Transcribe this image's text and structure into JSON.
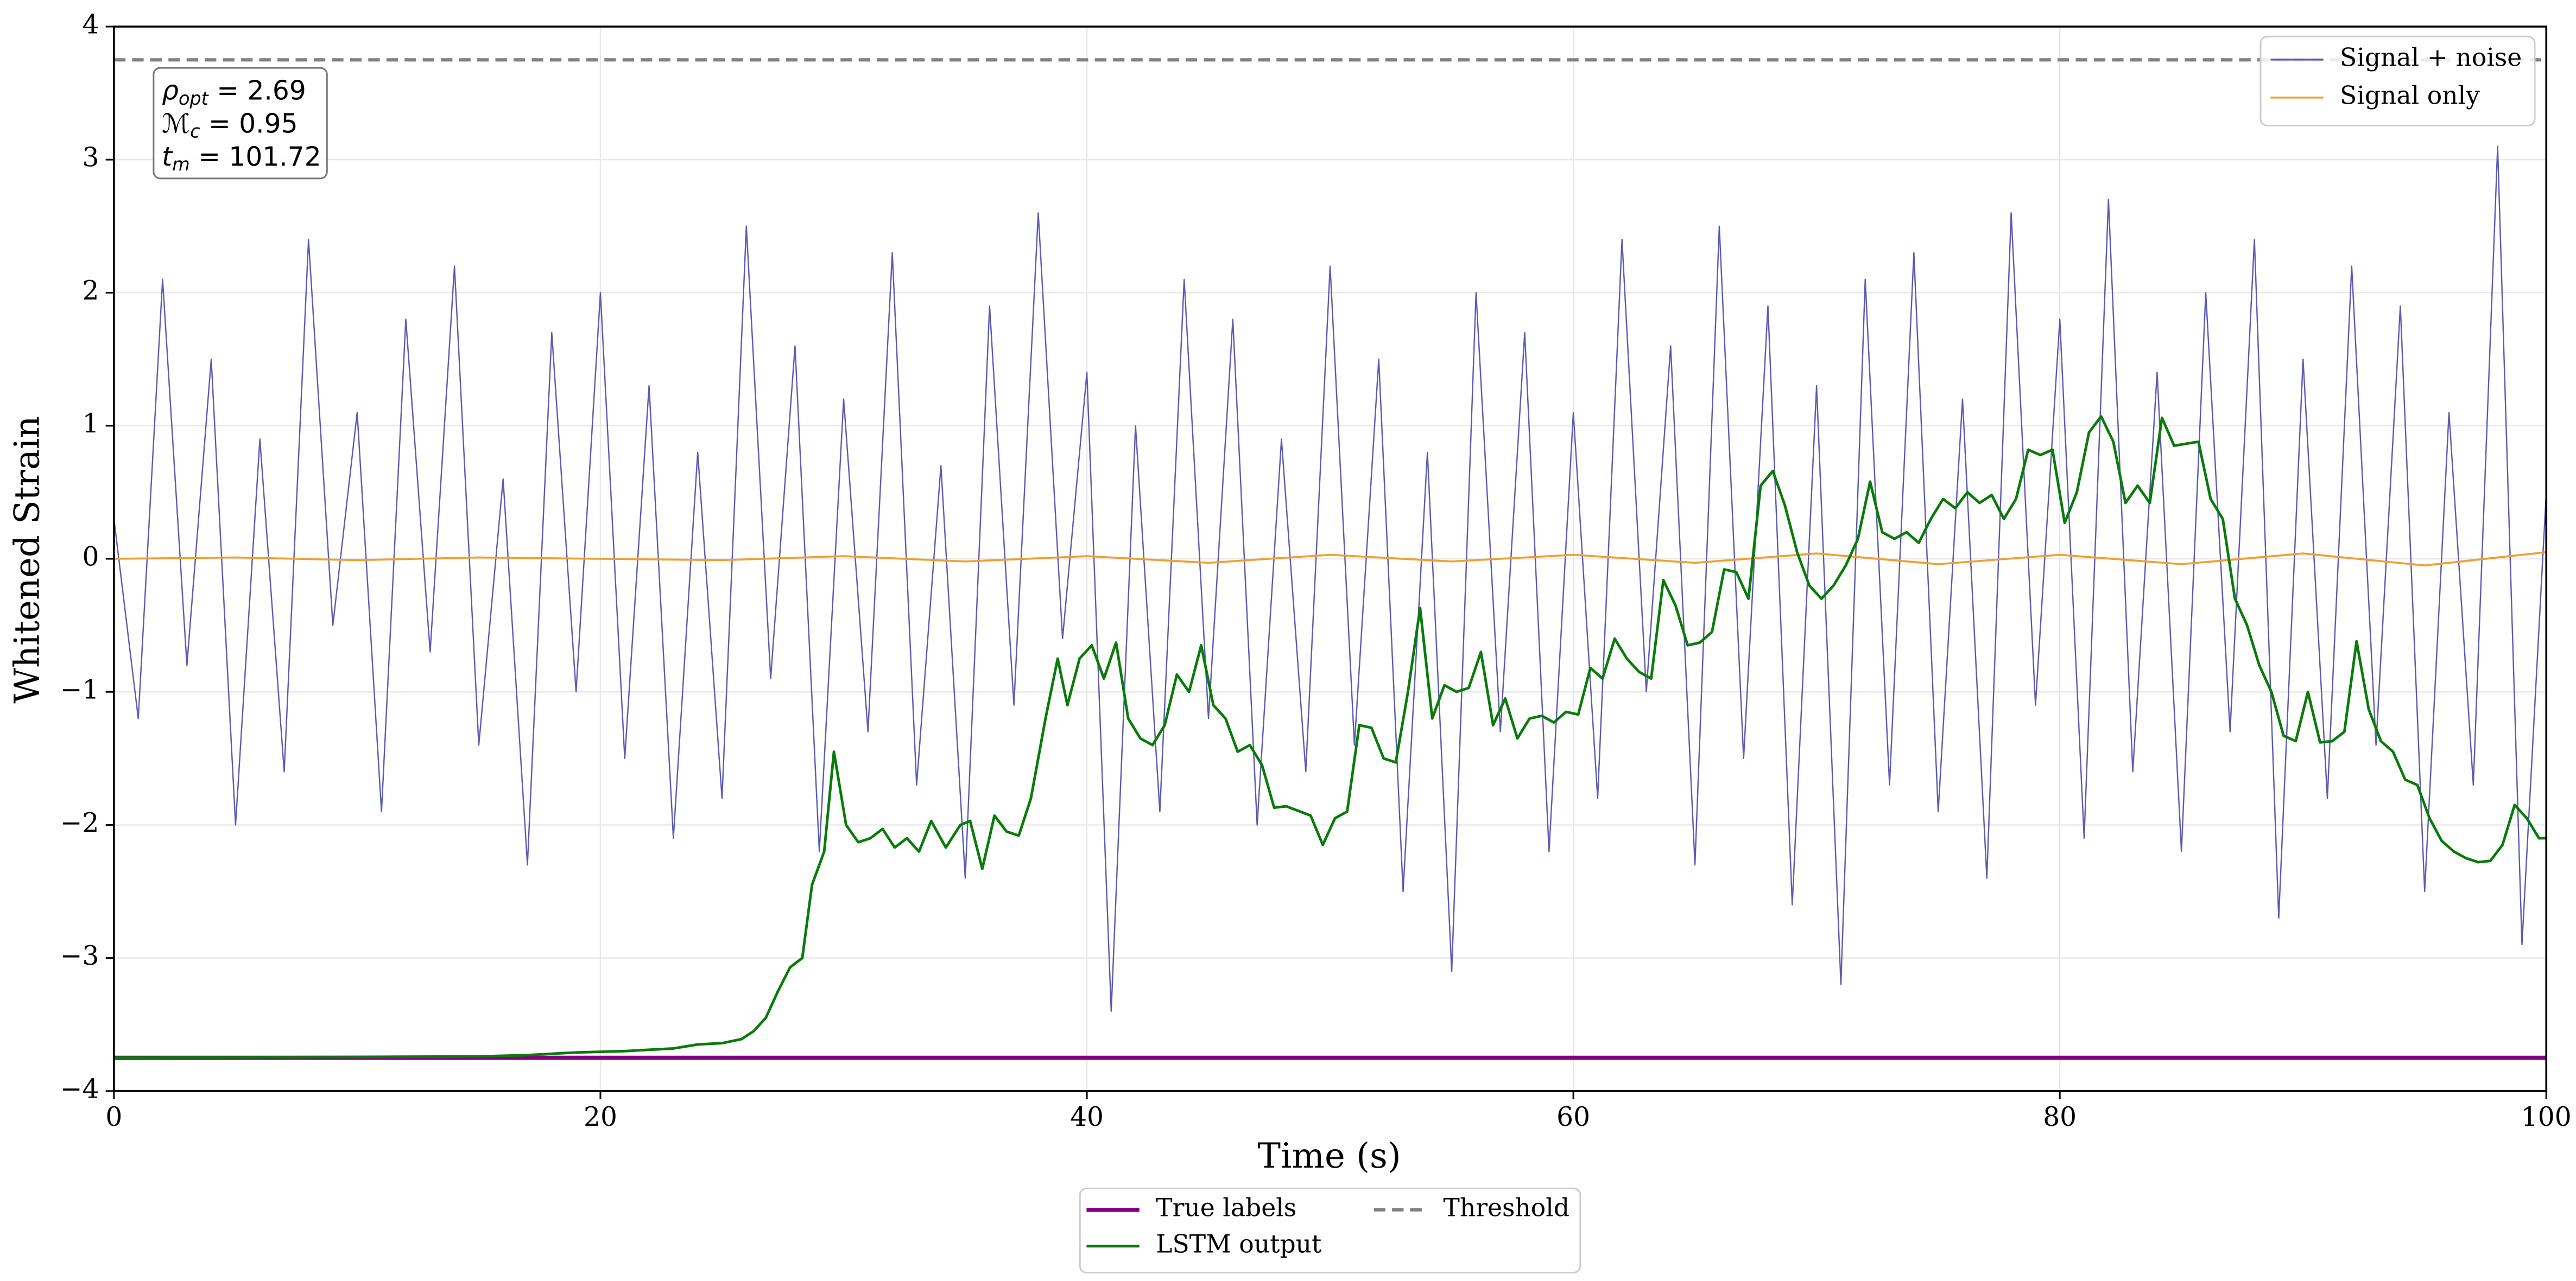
{
  "chart_data": {
    "type": "line",
    "xlabel": "Time (s)",
    "ylabel": "Whitened Strain",
    "xlim": [
      0,
      100
    ],
    "ylim": [
      -4,
      4
    ],
    "xticks": [
      0,
      20,
      40,
      60,
      80,
      100
    ],
    "yticks": [
      {
        "value": -4,
        "label": "−4"
      },
      {
        "value": -3,
        "label": "−3"
      },
      {
        "value": -2,
        "label": "−2"
      },
      {
        "value": -1,
        "label": "−1"
      },
      0,
      1,
      2,
      3,
      4
    ],
    "grid": true,
    "annotations": [
      {
        "symbol": "ρ",
        "sub": "opt",
        "text": " = 2.69"
      },
      {
        "symbol": "ℳ",
        "sub": "c",
        "text": " = 0.95"
      },
      {
        "symbol": "t",
        "sub": "m",
        "text": " = 101.72"
      }
    ],
    "series": [
      {
        "name": "Signal + noise",
        "color": "#5b5bb5",
        "width": 0.8,
        "legend": "upper right",
        "x": [
          0,
          1,
          2,
          3,
          4,
          5,
          6,
          7,
          8,
          9,
          10,
          11,
          12,
          13,
          14,
          15,
          16,
          17,
          18,
          19,
          20,
          21,
          22,
          23,
          24,
          25,
          26,
          27,
          28,
          29,
          30,
          31,
          32,
          33,
          34,
          35,
          36,
          37,
          38,
          39,
          40,
          41,
          42,
          43,
          44,
          45,
          46,
          47,
          48,
          49,
          50,
          51,
          52,
          53,
          54,
          55,
          56,
          57,
          58,
          59,
          60,
          61,
          62,
          63,
          64,
          65,
          66,
          67,
          68,
          69,
          70,
          71,
          72,
          73,
          74,
          75,
          76,
          77,
          78,
          79,
          80,
          81,
          82,
          83,
          84,
          85,
          86,
          87,
          88,
          89,
          90,
          91,
          92,
          93,
          94,
          95,
          96,
          97,
          98,
          99,
          100
        ],
        "values": [
          0.3,
          -1.2,
          2.1,
          -0.8,
          1.5,
          -2.0,
          0.9,
          -1.6,
          2.4,
          -0.5,
          1.1,
          -1.9,
          1.8,
          -0.7,
          2.2,
          -1.4,
          0.6,
          -2.3,
          1.7,
          -1.0,
          2.0,
          -1.5,
          1.3,
          -2.1,
          0.8,
          -1.8,
          2.5,
          -0.9,
          1.6,
          -2.2,
          1.2,
          -1.3,
          2.3,
          -1.7,
          0.7,
          -2.4,
          1.9,
          -1.1,
          2.6,
          -0.6,
          1.4,
          -3.4,
          1.0,
          -1.9,
          2.1,
          -1.2,
          1.8,
          -2.0,
          0.9,
          -1.6,
          2.2,
          -1.4,
          1.5,
          -2.5,
          0.8,
          -3.1,
          2.0,
          -1.3,
          1.7,
          -2.2,
          1.1,
          -1.8,
          2.4,
          -1.0,
          1.6,
          -2.3,
          2.5,
          -1.5,
          1.9,
          -2.6,
          1.3,
          -3.2,
          2.1,
          -1.7,
          2.3,
          -1.9,
          1.2,
          -2.4,
          2.6,
          -1.1,
          1.8,
          -2.1,
          2.7,
          -1.6,
          1.4,
          -2.2,
          2.0,
          -1.3,
          2.4,
          -2.7,
          1.5,
          -1.8,
          2.2,
          -1.4,
          1.9,
          -2.5,
          1.1,
          -1.7,
          3.1,
          -2.9,
          0.5
        ]
      },
      {
        "name": "Signal only",
        "color": "#f0a030",
        "width": 1.2,
        "legend": "upper right",
        "x": [
          0,
          5,
          10,
          15,
          20,
          25,
          30,
          35,
          40,
          45,
          50,
          55,
          60,
          65,
          70,
          75,
          80,
          85,
          90,
          95,
          100
        ],
        "values": [
          0,
          0.01,
          -0.01,
          0.01,
          0,
          -0.01,
          0.02,
          -0.02,
          0.02,
          -0.03,
          0.03,
          -0.02,
          0.03,
          -0.03,
          0.04,
          -0.04,
          0.03,
          -0.04,
          0.04,
          -0.05,
          0.05
        ]
      },
      {
        "name": "True labels",
        "color": "#800080",
        "width": 2.5,
        "legend": "below",
        "x": [
          0,
          100
        ],
        "values": [
          -3.75,
          -3.75
        ]
      },
      {
        "name": "LSTM output",
        "color": "#0a7a0a",
        "width": 1.6,
        "legend": "below",
        "x": [
          0,
          15,
          17,
          19,
          21,
          22,
          23,
          24,
          25,
          25.8,
          26.3,
          26.8,
          27.3,
          27.8,
          28.3,
          28.7,
          29.2,
          29.6,
          30.1,
          30.6,
          31.1,
          31.6,
          32.1,
          32.6,
          33.1,
          33.6,
          34.2,
          34.8,
          35.2,
          35.7,
          36.2,
          36.7,
          37.2,
          37.7,
          38.3,
          38.8,
          39.2,
          39.7,
          40.2,
          40.7,
          41.2,
          41.7,
          42.2,
          42.7,
          43.2,
          43.7,
          44.2,
          44.7,
          45.2,
          45.7,
          46.2,
          46.7,
          47.2,
          47.7,
          48.2,
          49.2,
          49.7,
          50.2,
          50.7,
          51.2,
          51.7,
          52.2,
          52.7,
          53.2,
          53.7,
          54.2,
          54.7,
          55.2,
          55.7,
          56.2,
          56.7,
          57.2,
          57.7,
          58.2,
          58.7,
          59.2,
          59.7,
          60.2,
          60.7,
          61.2,
          61.7,
          62.2,
          62.7,
          63.2,
          63.7,
          64.2,
          64.7,
          65.2,
          65.7,
          66.2,
          66.7,
          67.2,
          67.7,
          68.2,
          68.7,
          69.2,
          69.7,
          70.2,
          70.7,
          71.2,
          71.7,
          72.2,
          72.7,
          73.2,
          73.7,
          74.2,
          74.7,
          75.2,
          75.7,
          76.2,
          76.7,
          77.2,
          77.7,
          78.2,
          78.7,
          79.2,
          79.7,
          80.2,
          80.7,
          81.2,
          81.7,
          82.2,
          82.7,
          83.2,
          83.7,
          84.2,
          84.7,
          85.7,
          86.2,
          86.7,
          87.2,
          87.7,
          88.2,
          88.7,
          89.2,
          89.7,
          90.2,
          90.7,
          91.2,
          91.7,
          92.2,
          92.7,
          93.2,
          93.7,
          94.2,
          94.7,
          95.2,
          95.7,
          96.2,
          96.7,
          97.2,
          97.7,
          98.2,
          98.7,
          99.2,
          99.7,
          100
        ],
        "values": [
          -3.75,
          -3.74,
          -3.73,
          -3.71,
          -3.7,
          -3.69,
          -3.68,
          -3.65,
          -3.64,
          -3.61,
          -3.55,
          -3.45,
          -3.25,
          -3.07,
          -3,
          -2.45,
          -2.2,
          -1.45,
          -2,
          -2.13,
          -2.1,
          -2.03,
          -2.17,
          -2.1,
          -2.2,
          -1.97,
          -2.17,
          -2,
          -1.97,
          -2.33,
          -1.93,
          -2.05,
          -2.08,
          -1.8,
          -1.2,
          -0.75,
          -1.1,
          -0.75,
          -0.65,
          -0.9,
          -0.63,
          -1.2,
          -1.35,
          -1.4,
          -1.25,
          -0.87,
          -1,
          -0.65,
          -1.1,
          -1.2,
          -1.45,
          -1.4,
          -1.55,
          -1.87,
          -1.86,
          -1.93,
          -2.15,
          -1.95,
          -1.9,
          -1.25,
          -1.27,
          -1.5,
          -1.53,
          -1,
          -0.37,
          -1.2,
          -0.95,
          -1,
          -0.97,
          -0.7,
          -1.25,
          -1.05,
          -1.35,
          -1.2,
          -1.18,
          -1.23,
          -1.15,
          -1.17,
          -0.82,
          -0.9,
          -0.6,
          -0.75,
          -0.85,
          -0.9,
          -0.16,
          -0.35,
          -0.65,
          -0.63,
          -0.55,
          -0.08,
          -0.1,
          -0.3,
          0.55,
          0.66,
          0.4,
          0.05,
          -0.2,
          -0.3,
          -0.2,
          -0.05,
          0.15,
          0.58,
          0.2,
          0.15,
          0.2,
          0.12,
          0.3,
          0.45,
          0.38,
          0.5,
          0.42,
          0.48,
          0.3,
          0.45,
          0.82,
          0.78,
          0.82,
          0.27,
          0.5,
          0.95,
          1.07,
          0.88,
          0.42,
          0.55,
          0.42,
          1.06,
          0.85,
          0.88,
          0.45,
          0.3,
          -0.3,
          -0.5,
          -0.8,
          -1,
          -1.33,
          -1.37,
          -1,
          -1.38,
          -1.37,
          -1.3,
          -0.62,
          -1.13,
          -1.37,
          -1.45,
          -1.66,
          -1.7,
          -1.95,
          -2.12,
          -2.2,
          -2.25,
          -2.28,
          -2.27,
          -2.15,
          -1.85,
          -1.95,
          -2.1,
          -2.1
        ]
      },
      {
        "name": "Threshold",
        "color": "#808080",
        "width": 2,
        "dash": true,
        "legend": "below",
        "x": [
          0,
          100
        ],
        "values": [
          3.75,
          3.75
        ]
      }
    ]
  }
}
